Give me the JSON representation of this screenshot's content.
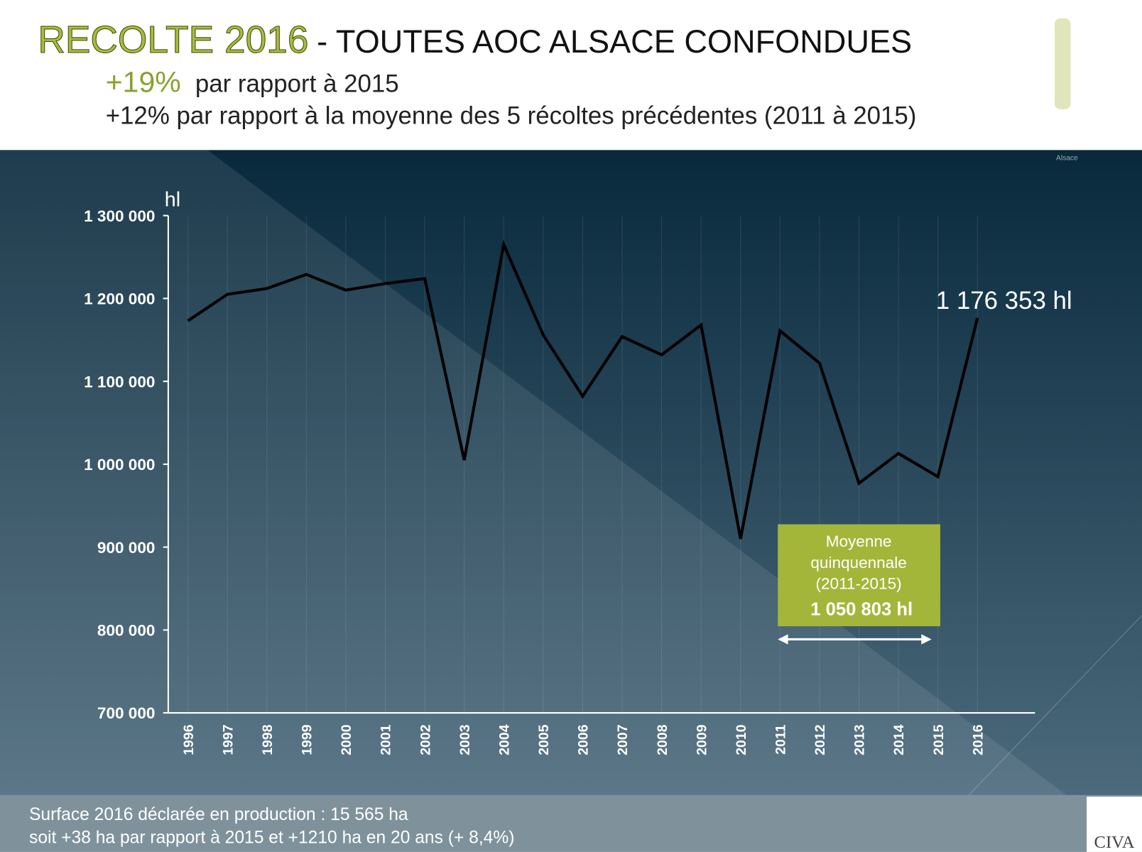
{
  "header": {
    "title_main": "RECOLTE 2016",
    "title_rest": "- TOUTES AOC ALSACE CONFONDUES",
    "line1_highlight": "+19%",
    "line1_rest": "par rapport à 2015",
    "line2": "+12% par rapport à la moyenne des 5 récoltes précédentes  (2011 à 2015)"
  },
  "logo": {
    "brand": "CIVA",
    "region": "Alsace"
  },
  "footer": {
    "line1": "Surface 2016 déclarée en production : 15 565 ha",
    "line2": "soit  +38 ha par rapport à 2015 et +1210 ha en 20 ans (+ 8,4%)"
  },
  "chart_data": {
    "type": "line",
    "y_unit": "hl",
    "categories": [
      "1996",
      "1997",
      "1998",
      "1999",
      "2000",
      "2001",
      "2002",
      "2003",
      "2004",
      "2005",
      "2006",
      "2007",
      "2008",
      "2009",
      "2010",
      "2011",
      "2012",
      "2013",
      "2014",
      "2015",
      "2016"
    ],
    "values": [
      1173000,
      1205000,
      1212000,
      1229000,
      1210000,
      1218000,
      1224000,
      1005000,
      1265000,
      1156000,
      1082000,
      1154000,
      1132000,
      1168000,
      910000,
      1161000,
      1122000,
      977000,
      1013000,
      985000,
      1176353
    ],
    "color": "#000000",
    "ylim": [
      700000,
      1300000
    ],
    "yticks": [
      {
        "value": 700000,
        "label": "700 000"
      },
      {
        "value": 800000,
        "label": "800 000"
      },
      {
        "value": 900000,
        "label": "900 000"
      },
      {
        "value": 1000000,
        "label": "1 000 000"
      },
      {
        "value": 1100000,
        "label": "1 100 000"
      },
      {
        "value": 1200000,
        "label": "1 200 000"
      },
      {
        "value": 1300000,
        "label": "1 300 000"
      }
    ],
    "last_value_label": "1 176 353 hl",
    "average_box": {
      "lines": [
        "Moyenne",
        "quinquennale",
        "(2011-2015)"
      ],
      "value_label": "1 050 803 hl"
    }
  }
}
